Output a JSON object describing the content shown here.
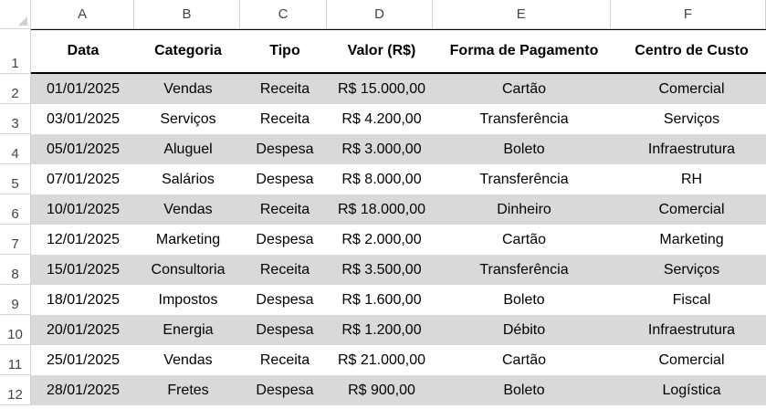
{
  "columns": [
    "A",
    "B",
    "C",
    "D",
    "E",
    "F"
  ],
  "row_numbers": [
    "1",
    "2",
    "3",
    "4",
    "5",
    "6",
    "7",
    "8",
    "9",
    "10",
    "11",
    "12"
  ],
  "headers": {
    "data": "Data",
    "categoria": "Categoria",
    "tipo": "Tipo",
    "valor": "Valor (R$)",
    "forma": "Forma de Pagamento",
    "centro": "Centro de Custo"
  },
  "rows": [
    {
      "data": "01/01/2025",
      "categoria": "Vendas",
      "tipo": "Receita",
      "valor": "R$ 15.000,00",
      "forma": "Cartão",
      "centro": "Comercial"
    },
    {
      "data": "03/01/2025",
      "categoria": "Serviços",
      "tipo": "Receita",
      "valor": "R$ 4.200,00",
      "forma": "Transferência",
      "centro": "Serviços"
    },
    {
      "data": "05/01/2025",
      "categoria": "Aluguel",
      "tipo": "Despesa",
      "valor": "R$ 3.000,00",
      "forma": "Boleto",
      "centro": "Infraestrutura"
    },
    {
      "data": "07/01/2025",
      "categoria": "Salários",
      "tipo": "Despesa",
      "valor": "R$ 8.000,00",
      "forma": "Transferência",
      "centro": "RH"
    },
    {
      "data": "10/01/2025",
      "categoria": "Vendas",
      "tipo": "Receita",
      "valor": "R$ 18.000,00",
      "forma": "Dinheiro",
      "centro": "Comercial"
    },
    {
      "data": "12/01/2025",
      "categoria": "Marketing",
      "tipo": "Despesa",
      "valor": "R$ 2.000,00",
      "forma": "Cartão",
      "centro": "Marketing"
    },
    {
      "data": "15/01/2025",
      "categoria": "Consultoria",
      "tipo": "Receita",
      "valor": "R$ 3.500,00",
      "forma": "Transferência",
      "centro": "Serviços"
    },
    {
      "data": "18/01/2025",
      "categoria": "Impostos",
      "tipo": "Despesa",
      "valor": "R$ 1.600,00",
      "forma": "Boleto",
      "centro": "Fiscal"
    },
    {
      "data": "20/01/2025",
      "categoria": "Energia",
      "tipo": "Despesa",
      "valor": "R$ 1.200,00",
      "forma": "Débito",
      "centro": "Infraestrutura"
    },
    {
      "data": "25/01/2025",
      "categoria": "Vendas",
      "tipo": "Receita",
      "valor": "R$ 21.000,00",
      "forma": "Cartão",
      "centro": "Comercial"
    },
    {
      "data": "28/01/2025",
      "categoria": "Fretes",
      "tipo": "Despesa",
      "valor": "R$ 900,00",
      "forma": "Boleto",
      "centro": "Logística"
    }
  ],
  "colors": {
    "band": "#d9d9d9",
    "white": "#ffffff",
    "gridline": "#d4d4d4"
  }
}
